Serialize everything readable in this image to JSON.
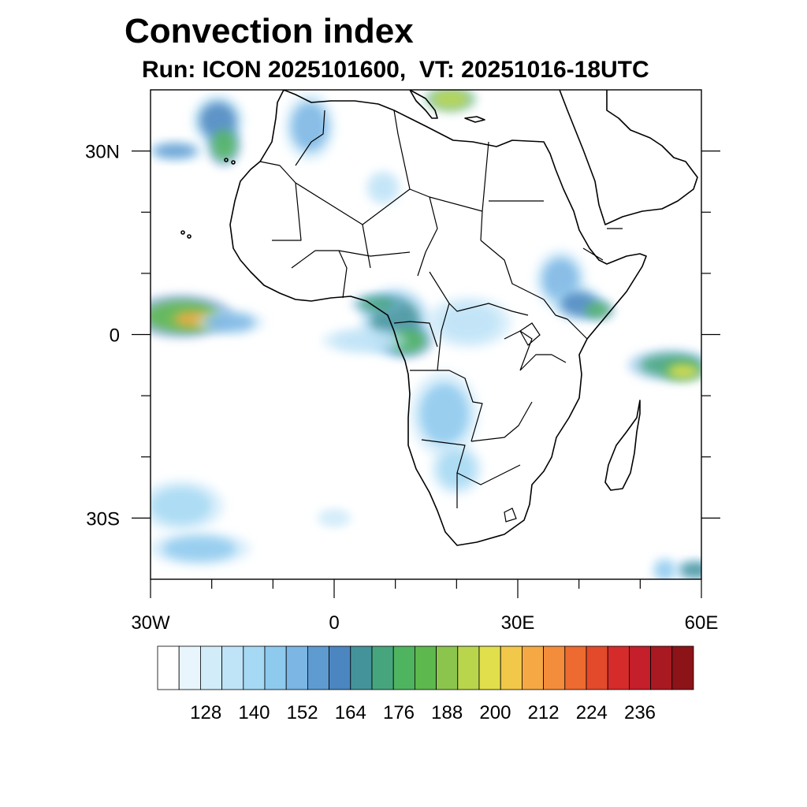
{
  "title": "Convection index",
  "subtitle": "Run: ICON 2025101600,  VT: 20251016-18UTC",
  "map": {
    "lon_range": [
      -30,
      60
    ],
    "lat_range": [
      -40,
      40
    ],
    "lon_ticks": [
      {
        "lon": -30,
        "label": "30W"
      },
      {
        "lon": 0,
        "label": "0"
      },
      {
        "lon": 30,
        "label": "30E"
      },
      {
        "lon": 60,
        "label": "60E"
      }
    ],
    "lat_ticks": [
      {
        "lat": 30,
        "label": "30N"
      },
      {
        "lat": 0,
        "label": "0"
      },
      {
        "lat": -30,
        "label": "30S"
      }
    ],
    "minor_lon_ticks": [
      -20,
      -10,
      10,
      20,
      40,
      50
    ],
    "minor_lat_ticks": [
      20,
      10,
      -10,
      -20
    ]
  },
  "colorbar": {
    "colors": [
      "#ffffff",
      "#e8f5fc",
      "#d2ecf9",
      "#bfe3f7",
      "#a6d9f3",
      "#8ec9ee",
      "#7bb6e4",
      "#5e9bd1",
      "#4b86c0",
      "#44939a",
      "#47a57e",
      "#4fb45f",
      "#5db84d",
      "#8cc54e",
      "#b8d54c",
      "#e1e04c",
      "#f2c84a",
      "#f5a843",
      "#f38d3b",
      "#ed6a30",
      "#e3492b",
      "#d52b2b",
      "#c41f2a",
      "#a91922",
      "#8c1418"
    ],
    "labels": [
      "128",
      "140",
      "152",
      "164",
      "176",
      "188",
      "200",
      "212",
      "224",
      "236"
    ],
    "label_after_box": [
      2,
      5,
      8,
      11,
      14,
      17,
      20,
      23,
      26,
      29
    ]
  },
  "convection_cells": [
    {
      "lon": -25,
      "lat": 3,
      "rlon": 6,
      "rlat": 2.5,
      "level": 12
    },
    {
      "lon": -23,
      "lat": 2.5,
      "rlon": 3,
      "rlat": 1.2,
      "level": 17
    },
    {
      "lon": -17,
      "lat": 2,
      "rlon": 4,
      "rlat": 1.5,
      "level": 6
    },
    {
      "lon": -19,
      "lat": 35,
      "rlon": 3,
      "rlat": 3,
      "level": 8
    },
    {
      "lon": -18,
      "lat": 31,
      "rlon": 2,
      "rlat": 2.5,
      "level": 11
    },
    {
      "lon": -26,
      "lat": 30,
      "rlon": 3.5,
      "rlat": 1.2,
      "level": 7
    },
    {
      "lon": -4,
      "lat": 34,
      "rlon": 3,
      "rlat": 4,
      "level": 6
    },
    {
      "lon": 19,
      "lat": 38.5,
      "rlon": 3,
      "rlat": 1.5,
      "level": 14
    },
    {
      "lon": 10,
      "lat": 2,
      "rlon": 4,
      "rlat": 4,
      "level": 9
    },
    {
      "lon": 12,
      "lat": -1,
      "rlon": 3,
      "rlat": 2,
      "level": 11
    },
    {
      "lon": 7,
      "lat": 5,
      "rlon": 3,
      "rlat": 1.2,
      "level": 10
    },
    {
      "lon": 37,
      "lat": 9,
      "rlon": 3,
      "rlat": 3.5,
      "level": 6
    },
    {
      "lon": 40,
      "lat": 5,
      "rlon": 3,
      "rlat": 2,
      "level": 8
    },
    {
      "lon": 43,
      "lat": 4,
      "rlon": 2,
      "rlat": 1.2,
      "level": 11
    },
    {
      "lon": 55,
      "lat": -5,
      "rlon": 5,
      "rlat": 1.8,
      "level": 10
    },
    {
      "lon": 57,
      "lat": -6,
      "rlon": 2.5,
      "rlat": 1.2,
      "level": 15
    },
    {
      "lon": 18,
      "lat": -13,
      "rlon": 4,
      "rlat": 5,
      "level": 5
    },
    {
      "lon": 20,
      "lat": -22,
      "rlon": 3,
      "rlat": 3,
      "level": 4
    },
    {
      "lon": 22,
      "lat": 2,
      "rlon": 5,
      "rlat": 3,
      "level": 3
    },
    {
      "lon": 5,
      "lat": -1,
      "rlon": 5,
      "rlat": 1.5,
      "level": 3
    },
    {
      "lon": -25,
      "lat": -28,
      "rlon": 5,
      "rlat": 3,
      "level": 4
    },
    {
      "lon": -22,
      "lat": -35,
      "rlon": 6,
      "rlat": 2,
      "level": 5
    },
    {
      "lon": 59,
      "lat": -38.5,
      "rlon": 2.5,
      "rlat": 1.2,
      "level": 9
    },
    {
      "lon": 54,
      "lat": -38.5,
      "rlon": 1.5,
      "rlat": 1.5,
      "level": 5
    },
    {
      "lon": 8,
      "lat": 24,
      "rlon": 2,
      "rlat": 2,
      "level": 3
    },
    {
      "lon": 0,
      "lat": -30,
      "rlon": 2,
      "rlat": 1,
      "level": 2
    }
  ]
}
